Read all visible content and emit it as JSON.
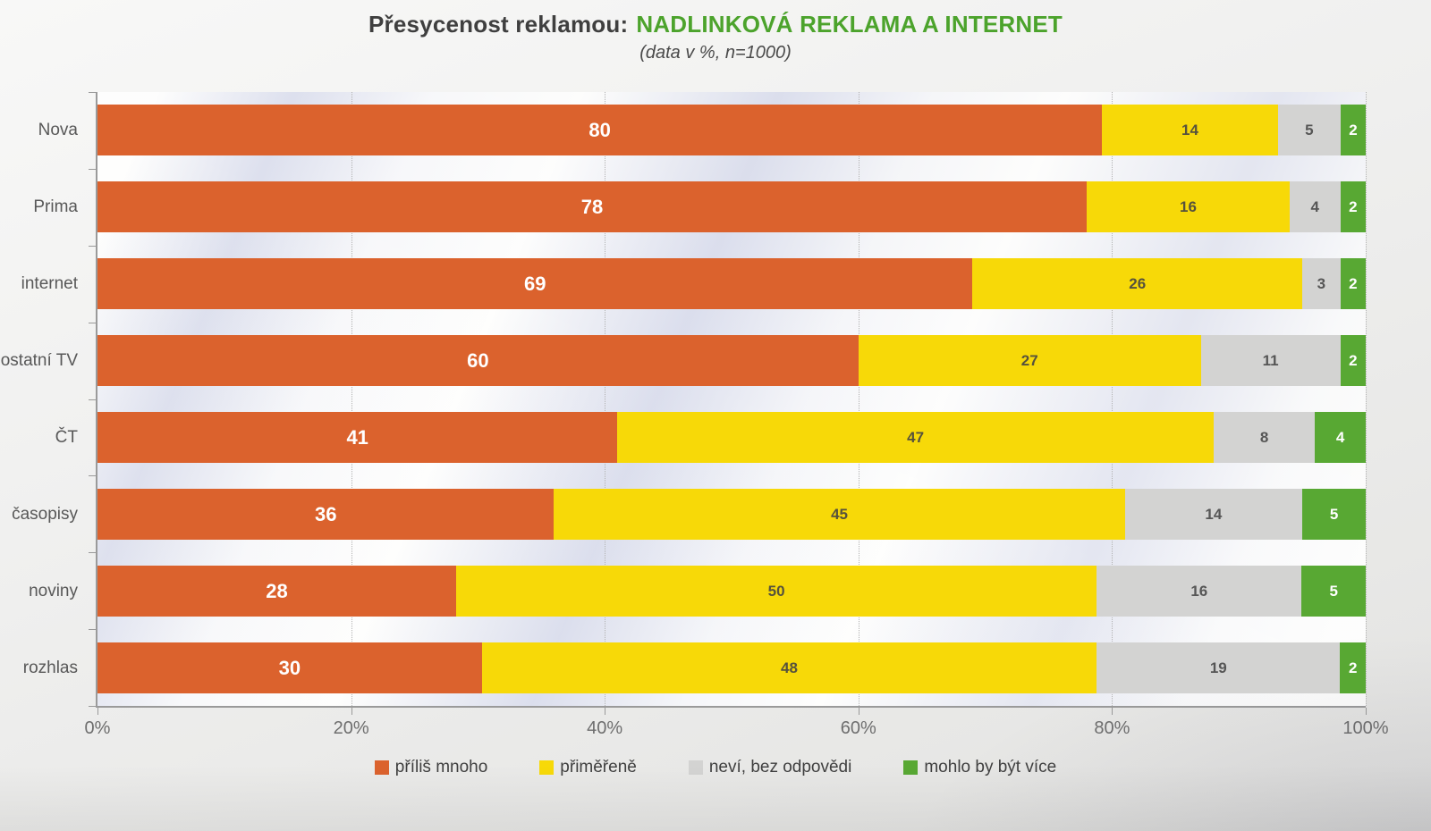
{
  "slide": {
    "title_prefix": "Přesycenost reklamou:",
    "title_highlight": "NADLINKOVÁ REKLAMA A INTERNET",
    "title_highlight_color": "#4CA32C",
    "subtitle": "(data v %, n=1000)"
  },
  "chart_data": {
    "type": "bar",
    "orientation": "horizontal",
    "stacked": true,
    "title": "Přesycenost reklamou: NADLINKOVÁ REKLAMA A INTERNET",
    "subtitle": "(data v %, n=1000)",
    "categories": [
      "Nova",
      "Prima",
      "internet",
      "ostatní TV",
      "ČT",
      "časopisy",
      "noviny",
      "rozhlas"
    ],
    "series": [
      {
        "name": "příliš mnoho",
        "color": "#DB622D",
        "label_color": "#ffffff",
        "values": [
          80,
          78,
          69,
          60,
          41,
          36,
          28,
          30
        ]
      },
      {
        "name": "přiměřeně",
        "color": "#F7D908",
        "label_color": "#56523d",
        "values": [
          14,
          16,
          26,
          27,
          47,
          45,
          50,
          48
        ]
      },
      {
        "name": "neví, bez odpovědi",
        "color": "#D3D3D2",
        "label_color": "#565656",
        "values": [
          5,
          4,
          3,
          11,
          8,
          14,
          16,
          19
        ]
      },
      {
        "name": "mohlo by být více",
        "color": "#58A833",
        "label_color": "#ffffff",
        "values": [
          2,
          2,
          2,
          2,
          4,
          5,
          5,
          2
        ]
      }
    ],
    "x_ticks": [
      "0%",
      "20%",
      "40%",
      "60%",
      "80%",
      "100%"
    ],
    "xlim": [
      0,
      100
    ],
    "grid": "dotted-vertical-every-20pct",
    "legend_position": "bottom",
    "values_in_percent": true,
    "sample_note": "n=1000"
  }
}
